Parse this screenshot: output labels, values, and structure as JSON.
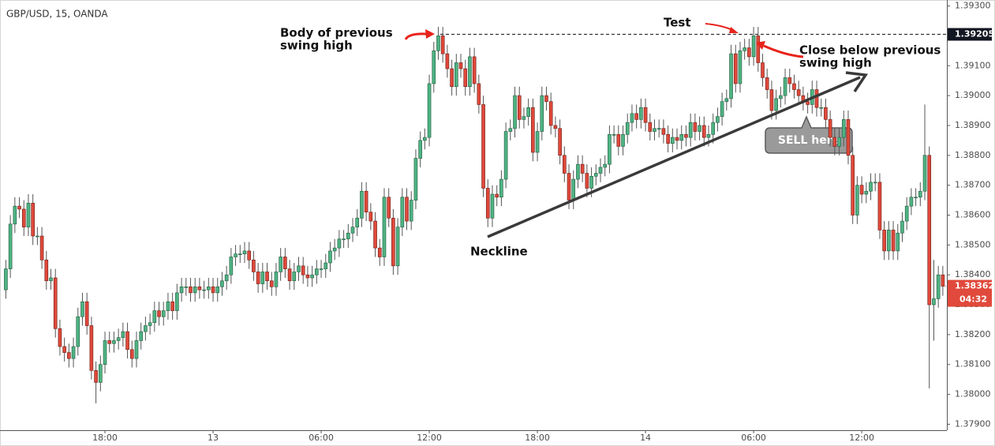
{
  "chart_data": {
    "type": "candlestick",
    "title": "GBP/USD, 15, OANDA",
    "up_color": "#4fb383",
    "down_color": "#e0493b",
    "xlim": [
      -1.3,
      208.9
    ],
    "xticks": [
      {
        "value": 22,
        "label": "18:00"
      },
      {
        "value": 46,
        "label": "13"
      },
      {
        "value": 70,
        "label": "06:00"
      },
      {
        "value": 94,
        "label": "12:00"
      },
      {
        "value": 118,
        "label": "18:00"
      },
      {
        "value": 142,
        "label": "14"
      },
      {
        "value": 166,
        "label": "06:00"
      },
      {
        "value": 190,
        "label": "12:00"
      }
    ],
    "ylim": [
      1.3788,
      1.3932
    ],
    "yticks": [
      {
        "value": 1.379,
        "label": "1.37900"
      },
      {
        "value": 1.38,
        "label": "1.38000"
      },
      {
        "value": 1.381,
        "label": "1.38100"
      },
      {
        "value": 1.382,
        "label": "1.38200"
      },
      {
        "value": 1.383,
        "label": "1.38300"
      },
      {
        "value": 1.384,
        "label": "1.38400"
      },
      {
        "value": 1.385,
        "label": "1.38500"
      },
      {
        "value": 1.386,
        "label": "1.38600"
      },
      {
        "value": 1.387,
        "label": "1.38700"
      },
      {
        "value": 1.388,
        "label": "1.38800"
      },
      {
        "value": 1.389,
        "label": "1.38900"
      },
      {
        "value": 1.39,
        "label": "1.39000"
      },
      {
        "value": 1.391,
        "label": "1.39100"
      },
      {
        "value": 1.392,
        "label": "1.39200"
      },
      {
        "value": 1.393,
        "label": "1.39300"
      }
    ],
    "grid": false,
    "price_line": {
      "value": 1.39205,
      "label": "1.39205"
    },
    "last_price": {
      "value": 1.38362,
      "label": "1.38362"
    },
    "countdown": "04:32",
    "annotations": {
      "body_line1": "Body of previous",
      "body_line2": "swing high",
      "test": "Test",
      "close_line1": "Close below previous",
      "close_line2": "swing high",
      "neckline": "Neckline",
      "sell": "SELL here"
    },
    "open": [
      1.3835,
      1.3842,
      1.3857,
      1.3863,
      1.3862,
      1.3856,
      1.3864,
      1.3853,
      1.3853,
      1.3845,
      1.3838,
      1.3839,
      1.3822,
      1.3816,
      1.3814,
      1.3812,
      1.3816,
      1.3826,
      1.3831,
      1.3823,
      1.3808,
      1.3804,
      1.381,
      1.3818,
      1.3817,
      1.3818,
      1.3819,
      1.3821,
      1.3815,
      1.3812,
      1.3818,
      1.3821,
      1.3823,
      1.3824,
      1.3828,
      1.3826,
      1.3828,
      1.3831,
      1.3828,
      1.3834,
      1.3836,
      1.3836,
      1.3834,
      1.3836,
      1.3835,
      1.3835,
      1.3836,
      1.3834,
      1.3836,
      1.3838,
      1.384,
      1.3846,
      1.3847,
      1.3847,
      1.3848,
      1.3845,
      1.3841,
      1.3837,
      1.3841,
      1.3838,
      1.3836,
      1.3841,
      1.3846,
      1.3842,
      1.3838,
      1.3841,
      1.3843,
      1.384,
      1.3839,
      1.384,
      1.3842,
      1.3842,
      1.3844,
      1.3848,
      1.3849,
      1.3852,
      1.3852,
      1.3854,
      1.3856,
      1.3859,
      1.3868,
      1.3861,
      1.3858,
      1.3849,
      1.3846,
      1.3866,
      1.3859,
      1.3843,
      1.3856,
      1.3866,
      1.3858,
      1.3865,
      1.3879,
      1.3885,
      1.3886,
      1.3904,
      1.3915,
      1.392,
      1.3914,
      1.3909,
      1.3903,
      1.3911,
      1.3909,
      1.3903,
      1.3913,
      1.3904,
      1.3897,
      1.3869,
      1.3859,
      1.3867,
      1.3866,
      1.3872,
      1.3888,
      1.3889,
      1.39,
      1.3892,
      1.3893,
      1.3896,
      1.3881,
      1.3888,
      1.39,
      1.3898,
      1.389,
      1.3889,
      1.388,
      1.3874,
      1.3865,
      1.3872,
      1.3877,
      1.3874,
      1.3869,
      1.3873,
      1.3874,
      1.3876,
      1.3877,
      1.3887,
      1.3887,
      1.3883,
      1.3887,
      1.3891,
      1.3894,
      1.3892,
      1.3896,
      1.3891,
      1.3888,
      1.3889,
      1.3889,
      1.3887,
      1.3884,
      1.3886,
      1.3885,
      1.3887,
      1.3886,
      1.3891,
      1.3888,
      1.389,
      1.3886,
      1.3887,
      1.3891,
      1.3893,
      1.3898,
      1.3899,
      1.3914,
      1.3904,
      1.3915,
      1.3916,
      1.3913,
      1.392,
      1.3911,
      1.3906,
      1.3902,
      1.3895,
      1.3899,
      1.39,
      1.3906,
      1.3904,
      1.3902,
      1.39,
      1.3898,
      1.3897,
      1.3902,
      1.3896,
      1.3896,
      1.3892,
      1.3886,
      1.3883,
      1.3886,
      1.3892,
      1.388,
      1.386,
      1.387,
      1.3867,
      1.3868,
      1.3871,
      1.3871,
      1.3855,
      1.3848,
      1.3855,
      1.3848,
      1.3854,
      1.3858,
      1.3863,
      1.3866,
      1.3866,
      1.3868,
      1.388,
      1.383,
      1.3832,
      1.384
    ],
    "high": [
      1.3845,
      1.386,
      1.3866,
      1.3866,
      1.3865,
      1.3867,
      1.3867,
      1.3856,
      1.3856,
      1.3848,
      1.3842,
      1.3842,
      1.3825,
      1.3819,
      1.3817,
      1.3819,
      1.3829,
      1.3834,
      1.3834,
      1.3826,
      1.3811,
      1.3813,
      1.3821,
      1.3821,
      1.3821,
      1.3822,
      1.3824,
      1.3824,
      1.3818,
      1.3821,
      1.3824,
      1.3826,
      1.3827,
      1.3831,
      1.3831,
      1.3831,
      1.3834,
      1.3834,
      1.3837,
      1.3839,
      1.3839,
      1.3839,
      1.3839,
      1.3839,
      1.3838,
      1.3839,
      1.3839,
      1.3839,
      1.3841,
      1.3843,
      1.3849,
      1.385,
      1.385,
      1.3851,
      1.3851,
      1.3848,
      1.3844,
      1.3844,
      1.3844,
      1.3841,
      1.3844,
      1.3849,
      1.3849,
      1.3845,
      1.3844,
      1.3846,
      1.3846,
      1.3843,
      1.3843,
      1.3845,
      1.3845,
      1.3847,
      1.3851,
      1.3852,
      1.3855,
      1.3855,
      1.3857,
      1.3859,
      1.3862,
      1.3871,
      1.3871,
      1.3864,
      1.3861,
      1.3852,
      1.3869,
      1.3869,
      1.3862,
      1.3859,
      1.3869,
      1.3869,
      1.3868,
      1.3882,
      1.3888,
      1.3889,
      1.3907,
      1.3918,
      1.3923,
      1.3923,
      1.3917,
      1.3912,
      1.3914,
      1.3914,
      1.3912,
      1.3916,
      1.3916,
      1.3907,
      1.39,
      1.3872,
      1.387,
      1.387,
      1.3875,
      1.3891,
      1.3892,
      1.3903,
      1.3903,
      1.3896,
      1.3899,
      1.3899,
      1.3891,
      1.3903,
      1.3903,
      1.3901,
      1.3893,
      1.3892,
      1.3883,
      1.3877,
      1.3875,
      1.388,
      1.388,
      1.3877,
      1.3876,
      1.3877,
      1.3879,
      1.388,
      1.389,
      1.389,
      1.389,
      1.389,
      1.3894,
      1.3897,
      1.3897,
      1.3899,
      1.3899,
      1.3894,
      1.3892,
      1.3892,
      1.3892,
      1.389,
      1.3889,
      1.3889,
      1.389,
      1.389,
      1.3894,
      1.3894,
      1.3893,
      1.3893,
      1.389,
      1.3894,
      1.3896,
      1.3901,
      1.3902,
      1.3917,
      1.3917,
      1.3918,
      1.3919,
      1.3919,
      1.3923,
      1.3923,
      1.3914,
      1.3909,
      1.3905,
      1.3902,
      1.3903,
      1.3909,
      1.3909,
      1.3907,
      1.3905,
      1.3903,
      1.3901,
      1.3905,
      1.3905,
      1.3899,
      1.3899,
      1.3895,
      1.3889,
      1.3889,
      1.3895,
      1.3895,
      1.3883,
      1.3873,
      1.3873,
      1.3871,
      1.3874,
      1.3874,
      1.3874,
      1.3858,
      1.3858,
      1.3858,
      1.3857,
      1.3861,
      1.3866,
      1.3869,
      1.3869,
      1.3871,
      1.3897,
      1.3883,
      1.3845,
      1.3843,
      1.3843
    ],
    "low": [
      1.3832,
      1.3839,
      1.3854,
      1.3859,
      1.3853,
      1.3853,
      1.385,
      1.385,
      1.3842,
      1.3835,
      1.3835,
      1.3819,
      1.3813,
      1.3811,
      1.3809,
      1.3809,
      1.3813,
      1.3823,
      1.382,
      1.3805,
      1.3797,
      1.3801,
      1.3807,
      1.3814,
      1.3814,
      1.3815,
      1.3816,
      1.3812,
      1.3809,
      1.3809,
      1.3815,
      1.3818,
      1.382,
      1.3821,
      1.3823,
      1.3823,
      1.3825,
      1.3825,
      1.3825,
      1.3831,
      1.3833,
      1.3831,
      1.3831,
      1.3832,
      1.3832,
      1.3832,
      1.3831,
      1.3831,
      1.3833,
      1.3835,
      1.3837,
      1.3843,
      1.3844,
      1.3844,
      1.3842,
      1.3838,
      1.3834,
      1.3834,
      1.3835,
      1.3833,
      1.3833,
      1.3838,
      1.3839,
      1.3835,
      1.3835,
      1.3838,
      1.3837,
      1.3836,
      1.3836,
      1.3837,
      1.3839,
      1.3839,
      1.3841,
      1.3845,
      1.3846,
      1.3849,
      1.3849,
      1.3851,
      1.3853,
      1.3856,
      1.3858,
      1.3855,
      1.3846,
      1.3843,
      1.3843,
      1.3856,
      1.384,
      1.384,
      1.3853,
      1.3855,
      1.3855,
      1.3862,
      1.3876,
      1.3882,
      1.3883,
      1.3901,
      1.3912,
      1.3911,
      1.3906,
      1.39,
      1.39,
      1.3906,
      1.39,
      1.39,
      1.3901,
      1.3894,
      1.3866,
      1.3856,
      1.3856,
      1.3863,
      1.3863,
      1.3869,
      1.3885,
      1.3886,
      1.3889,
      1.3889,
      1.389,
      1.3878,
      1.3878,
      1.3885,
      1.3895,
      1.3887,
      1.3886,
      1.3877,
      1.3871,
      1.3862,
      1.3862,
      1.3869,
      1.3871,
      1.3866,
      1.3866,
      1.387,
      1.3871,
      1.3873,
      1.3874,
      1.3884,
      1.388,
      1.388,
      1.3884,
      1.3888,
      1.3889,
      1.3889,
      1.3888,
      1.3885,
      1.3885,
      1.3886,
      1.3884,
      1.3881,
      1.3881,
      1.3882,
      1.3882,
      1.3883,
      1.3883,
      1.3885,
      1.3885,
      1.3883,
      1.3883,
      1.3884,
      1.3888,
      1.389,
      1.3895,
      1.3896,
      1.3901,
      1.3901,
      1.3912,
      1.391,
      1.391,
      1.3908,
      1.3903,
      1.3899,
      1.3892,
      1.3892,
      1.3896,
      1.3897,
      1.3901,
      1.3899,
      1.3897,
      1.3895,
      1.3894,
      1.3894,
      1.3893,
      1.3893,
      1.3889,
      1.3883,
      1.388,
      1.388,
      1.3883,
      1.3877,
      1.3857,
      1.3857,
      1.3864,
      1.3864,
      1.3865,
      1.3868,
      1.3852,
      1.3845,
      1.3845,
      1.3845,
      1.3845,
      1.3851,
      1.3855,
      1.386,
      1.3863,
      1.3863,
      1.3865,
      1.3802,
      1.3818,
      1.3829,
      1.3833
    ],
    "close": [
      1.3842,
      1.3857,
      1.3863,
      1.3862,
      1.3856,
      1.3864,
      1.3853,
      1.3853,
      1.3845,
      1.3838,
      1.3839,
      1.3822,
      1.3816,
      1.3814,
      1.3812,
      1.3816,
      1.3826,
      1.3831,
      1.3823,
      1.3808,
      1.3804,
      1.381,
      1.3818,
      1.3817,
      1.3818,
      1.3819,
      1.3821,
      1.3815,
      1.3812,
      1.3818,
      1.3821,
      1.3823,
      1.3824,
      1.3828,
      1.3826,
      1.3828,
      1.3831,
      1.3828,
      1.3834,
      1.3836,
      1.3836,
      1.3834,
      1.3836,
      1.3835,
      1.3835,
      1.3836,
      1.3834,
      1.3836,
      1.3838,
      1.384,
      1.3846,
      1.3847,
      1.3847,
      1.3848,
      1.3845,
      1.3841,
      1.3837,
      1.3841,
      1.3838,
      1.3836,
      1.3841,
      1.3846,
      1.3842,
      1.3838,
      1.3841,
      1.3843,
      1.384,
      1.3839,
      1.384,
      1.3842,
      1.3842,
      1.3844,
      1.3848,
      1.3849,
      1.3852,
      1.3852,
      1.3854,
      1.3856,
      1.3859,
      1.3868,
      1.3861,
      1.3858,
      1.3849,
      1.3846,
      1.3866,
      1.3859,
      1.3843,
      1.3856,
      1.3866,
      1.3858,
      1.3865,
      1.3879,
      1.3885,
      1.3886,
      1.3904,
      1.3915,
      1.392,
      1.3914,
      1.3909,
      1.3903,
      1.3911,
      1.3909,
      1.3903,
      1.3913,
      1.3904,
      1.3897,
      1.3869,
      1.3859,
      1.3867,
      1.3866,
      1.3872,
      1.3888,
      1.3889,
      1.39,
      1.3892,
      1.3893,
      1.3896,
      1.3881,
      1.3888,
      1.39,
      1.3898,
      1.389,
      1.3889,
      1.388,
      1.3874,
      1.3865,
      1.3872,
      1.3877,
      1.3874,
      1.3869,
      1.3873,
      1.3874,
      1.3876,
      1.3877,
      1.3887,
      1.3887,
      1.3883,
      1.3887,
      1.3891,
      1.3894,
      1.3892,
      1.3896,
      1.3891,
      1.3888,
      1.3889,
      1.3889,
      1.3887,
      1.3884,
      1.3886,
      1.3885,
      1.3887,
      1.3886,
      1.3891,
      1.3888,
      1.389,
      1.3886,
      1.3887,
      1.3891,
      1.3893,
      1.3898,
      1.3899,
      1.3914,
      1.3904,
      1.3915,
      1.3916,
      1.3913,
      1.392,
      1.3911,
      1.3906,
      1.3902,
      1.3895,
      1.3899,
      1.39,
      1.3906,
      1.3904,
      1.3902,
      1.39,
      1.3898,
      1.3897,
      1.3902,
      1.3896,
      1.3896,
      1.3892,
      1.3886,
      1.3883,
      1.3886,
      1.3892,
      1.388,
      1.386,
      1.387,
      1.3867,
      1.3868,
      1.3871,
      1.3871,
      1.3855,
      1.3848,
      1.3855,
      1.3848,
      1.3854,
      1.3858,
      1.3863,
      1.3866,
      1.3866,
      1.3868,
      1.388,
      1.383,
      1.3832,
      1.384,
      1.38362
    ]
  }
}
